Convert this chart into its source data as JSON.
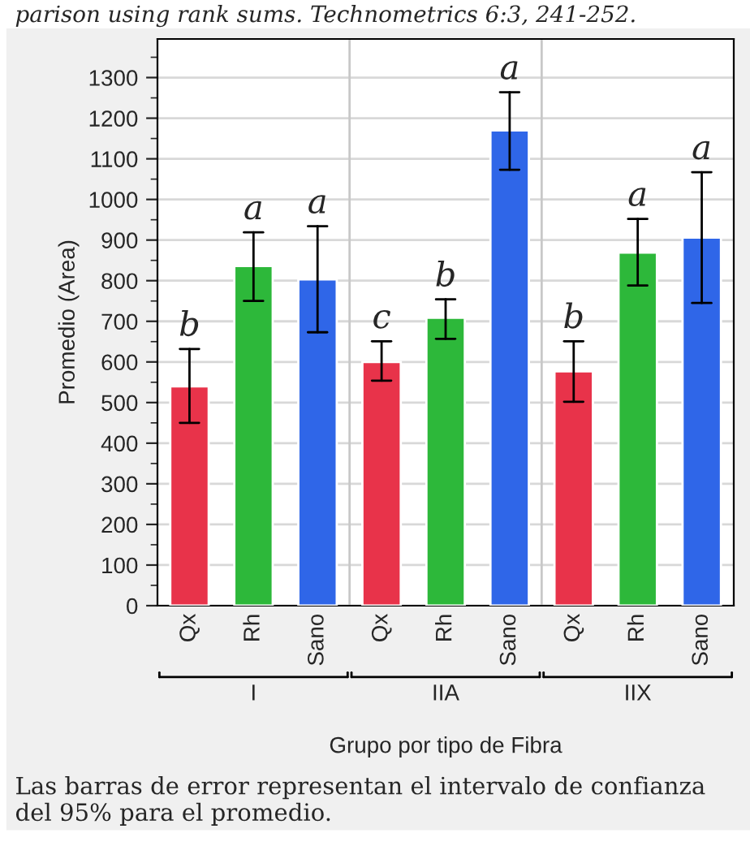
{
  "chart_data": {
    "type": "bar",
    "ylabel": "Promedio (Area)",
    "xlabel": "Grupo por tipo de Fibra",
    "categories": [
      "Qx",
      "Rh",
      "Sano",
      "Qx",
      "Rh",
      "Sano",
      "Qx",
      "Rh",
      "Sano"
    ],
    "values": [
      540,
      836,
      803,
      600,
      709,
      1170,
      577,
      869,
      906
    ],
    "colors": [
      "#e8334a",
      "#2db83a",
      "#2f66e8",
      "#e8334a",
      "#2db83a",
      "#2f66e8",
      "#e8334a",
      "#2db83a",
      "#2f66e8"
    ],
    "errors": [
      [
        450,
        632
      ],
      [
        750,
        919
      ],
      [
        673,
        934
      ],
      [
        554,
        651
      ],
      [
        657,
        754
      ],
      [
        1073,
        1264
      ],
      [
        502,
        651
      ],
      [
        788,
        952
      ],
      [
        745,
        1067
      ]
    ],
    "value_labels": [
      "b",
      "a",
      "a",
      "c",
      "b",
      "a",
      "b",
      "a",
      "a"
    ],
    "ylim": [
      0,
      1395
    ],
    "yticks": [
      0,
      100,
      200,
      300,
      400,
      500,
      600,
      700,
      800,
      900,
      1000,
      1100,
      1200,
      1300
    ],
    "grid": "y",
    "annotations": [
      "I",
      "IIA",
      "IIX",
      "parison using rank sums. Technometrics 6:3, 241-252.",
      "Las barras de error representan el intervalo de confianza del 95% para el promedio."
    ]
  }
}
